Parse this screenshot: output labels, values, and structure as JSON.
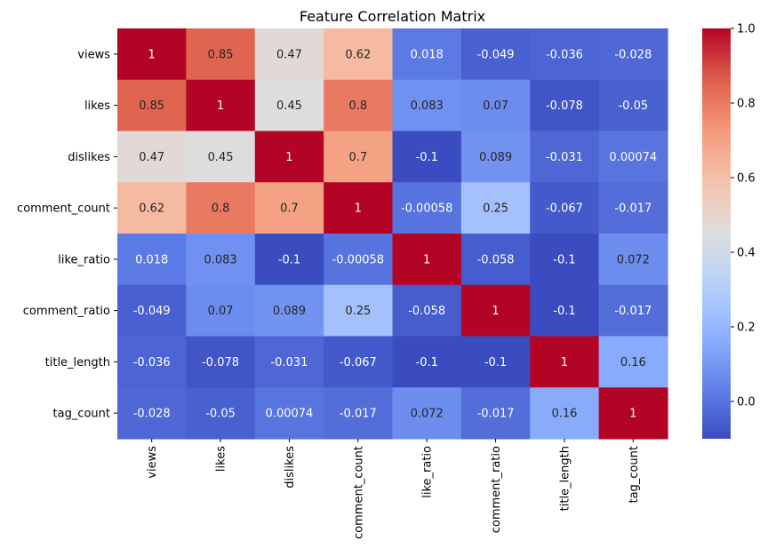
{
  "chart_data": {
    "type": "heatmap",
    "title": "Feature Correlation Matrix",
    "xlabel": "",
    "ylabel": "",
    "row_labels": [
      "views",
      "likes",
      "dislikes",
      "comment_count",
      "like_ratio",
      "comment_ratio",
      "title_length",
      "tag_count"
    ],
    "col_labels": [
      "views",
      "likes",
      "dislikes",
      "comment_count",
      "like_ratio",
      "comment_ratio",
      "title_length",
      "tag_count"
    ],
    "values": [
      [
        1,
        0.85,
        0.47,
        0.62,
        0.018,
        -0.049,
        -0.036,
        -0.028
      ],
      [
        0.85,
        1,
        0.45,
        0.8,
        0.083,
        0.07,
        -0.078,
        -0.05
      ],
      [
        0.47,
        0.45,
        1,
        0.7,
        -0.1,
        0.089,
        -0.031,
        0.00074
      ],
      [
        0.62,
        0.8,
        0.7,
        1,
        -0.00058,
        0.25,
        -0.067,
        -0.017
      ],
      [
        0.018,
        0.083,
        -0.1,
        -0.00058,
        1,
        -0.058,
        -0.1,
        0.072
      ],
      [
        -0.049,
        0.07,
        0.089,
        0.25,
        -0.058,
        1,
        -0.1,
        -0.017
      ],
      [
        -0.036,
        -0.078,
        -0.031,
        -0.067,
        -0.1,
        -0.1,
        1,
        0.16
      ],
      [
        -0.028,
        -0.05,
        0.00074,
        -0.017,
        0.072,
        -0.017,
        0.16,
        1
      ]
    ],
    "colormap": "coolwarm",
    "annotations": true,
    "colorbar": {
      "vmin": -0.1,
      "vmax": 1.0,
      "ticks": [
        0.0,
        0.2,
        0.4,
        0.6,
        0.8,
        1.0
      ],
      "tick_labels": [
        "0.0",
        "0.2",
        "0.4",
        "0.6",
        "0.8",
        "1.0"
      ],
      "position": "right"
    },
    "grid": false,
    "legend": "colorbar-right"
  }
}
